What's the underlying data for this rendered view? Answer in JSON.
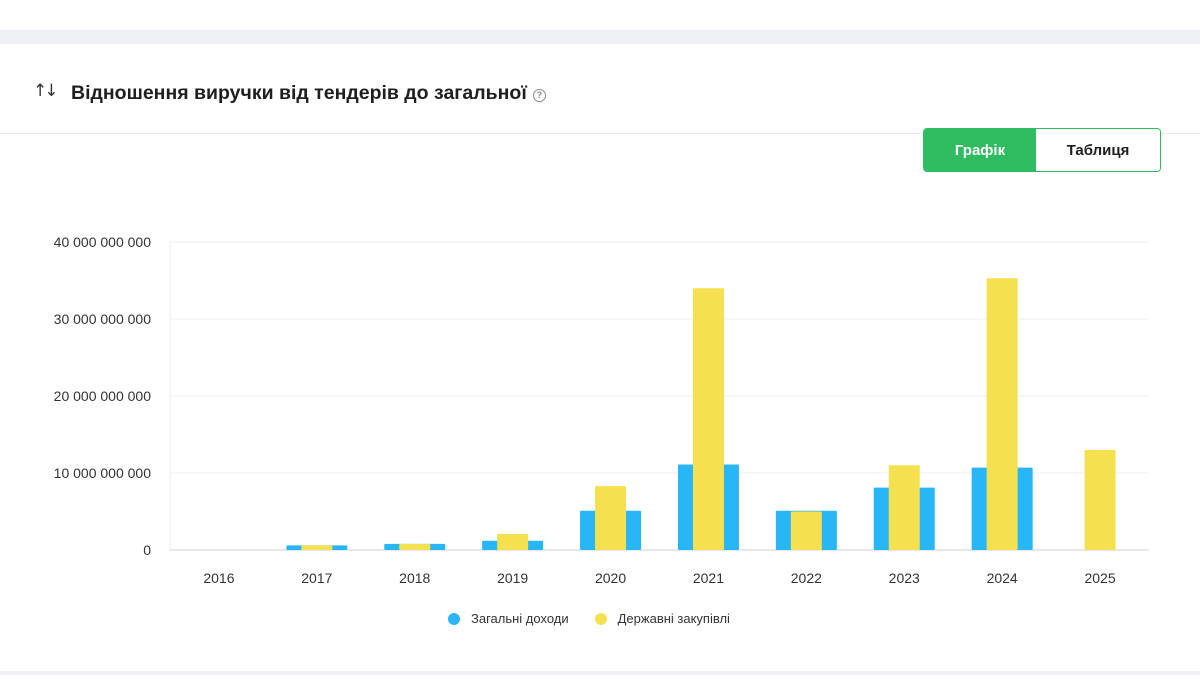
{
  "header": {
    "title": "Відношення виручки від тендерів до загальної",
    "sort_icon": "sort-arrows-icon",
    "help_icon": "help-circle-icon",
    "help_glyph": "?"
  },
  "view_toggle": {
    "chart_label": "Графік",
    "table_label": "Таблиця",
    "active": "chart"
  },
  "colors": {
    "total_income": "#29b6f6",
    "public_procurement": "#f5e050",
    "accent": "#2fbb5f"
  },
  "chart_data": {
    "type": "bar",
    "categories": [
      "2016",
      "2017",
      "2018",
      "2019",
      "2020",
      "2021",
      "2022",
      "2023",
      "2024",
      "2025"
    ],
    "series": [
      {
        "name": "Загальні доходи",
        "values": [
          0,
          600000000,
          800000000,
          1200000000,
          5100000000,
          11100000000,
          5100000000,
          8100000000,
          10700000000,
          0
        ]
      },
      {
        "name": "Державні закупівлі",
        "values": [
          0,
          600000000,
          800000000,
          2100000000,
          8300000000,
          34000000000,
          5000000000,
          11000000000,
          35300000000,
          13000000000
        ]
      }
    ],
    "ylim": [
      0,
      40000000000
    ],
    "yticks": [
      0,
      10000000000,
      20000000000,
      30000000000,
      40000000000
    ],
    "ytick_labels": [
      "0",
      "10 000 000 000",
      "20 000 000 000",
      "30 000 000 000",
      "40 000 000 000"
    ],
    "grid": true,
    "legend_position": "bottom"
  }
}
